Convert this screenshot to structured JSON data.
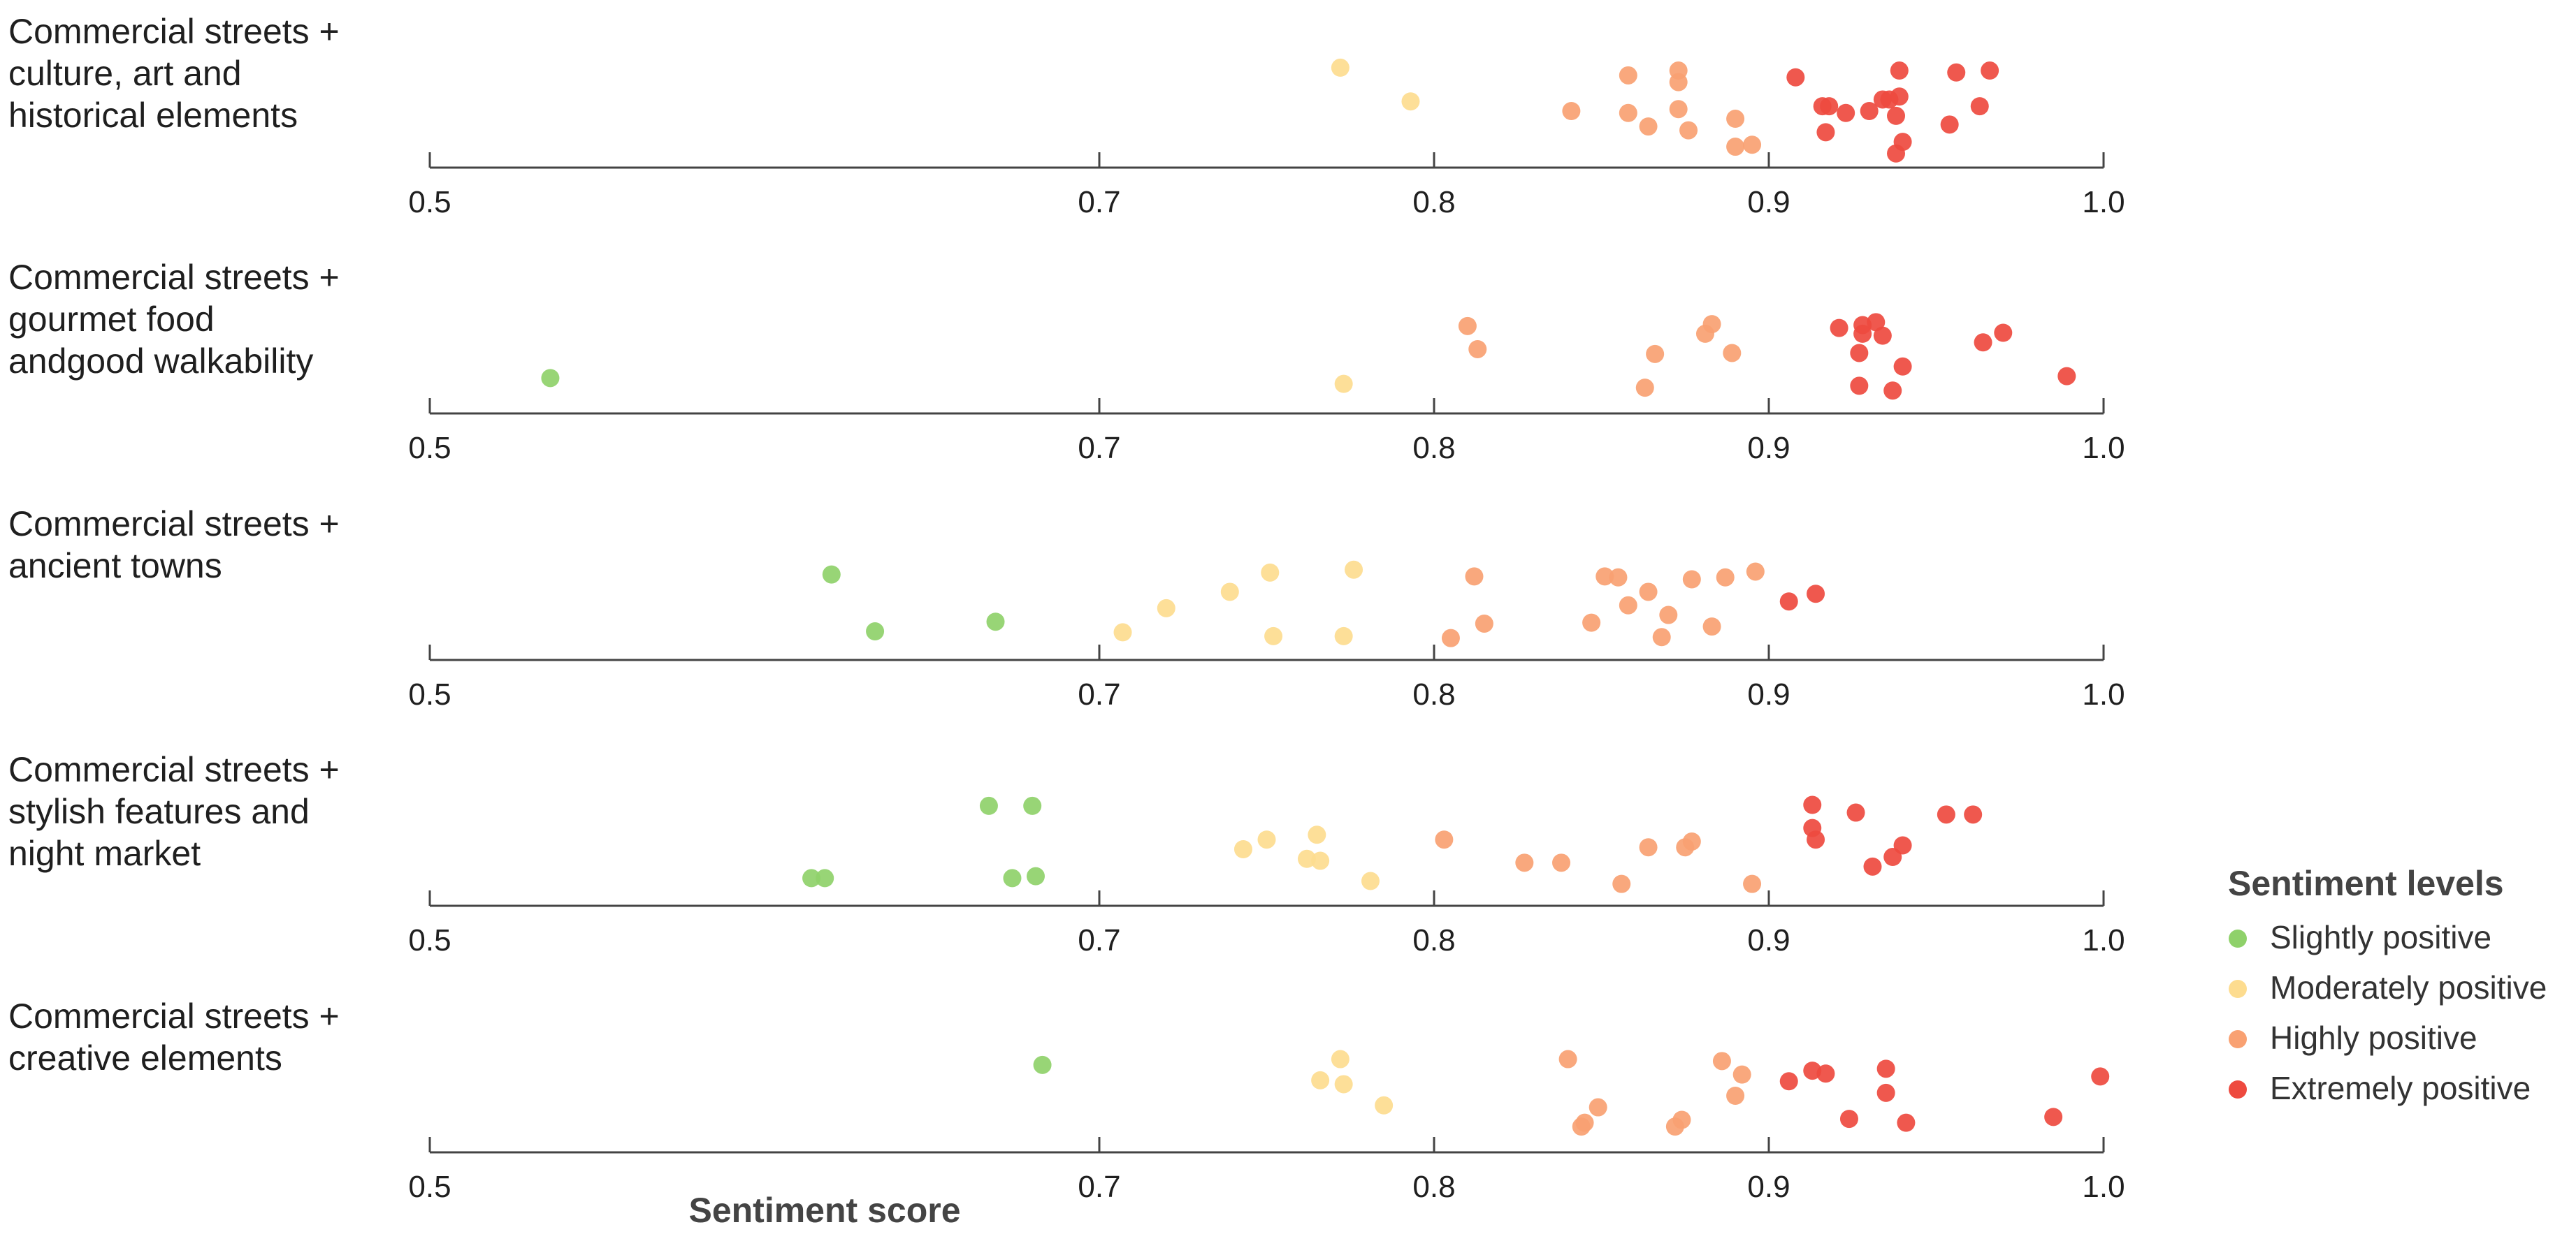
{
  "chart_data": {
    "type": "scatter",
    "xlabel": "Sentiment score",
    "ticks": [
      0.5,
      0.7,
      0.8,
      0.9,
      1.0
    ],
    "tick_labels": [
      "0.5",
      "0.7",
      "0.8",
      "0.9",
      "1.0"
    ],
    "xlim": [
      0.5,
      1.0
    ],
    "legend": {
      "title": "Sentiment levels",
      "placement": "right",
      "entries": [
        {
          "label": "Slightly positive",
          "color": "#8fd16a"
        },
        {
          "label": "Moderately positive",
          "color": "#fddc8f"
        },
        {
          "label": "Highly positive",
          "color": "#f9a172"
        },
        {
          "label": "Extremely positive",
          "color": "#ee4a3f"
        }
      ]
    },
    "panels": [
      {
        "label_lines": [
          "Commercial streets +",
          "culture, art and",
          "historical elements"
        ],
        "points": [
          {
            "x": 0.772,
            "j": 0.95,
            "c": 1
          },
          {
            "x": 0.793,
            "j": 0.6,
            "c": 1
          },
          {
            "x": 0.841,
            "j": 0.5,
            "c": 2
          },
          {
            "x": 0.858,
            "j": 0.87,
            "c": 2
          },
          {
            "x": 0.858,
            "j": 0.48,
            "c": 2
          },
          {
            "x": 0.864,
            "j": 0.34,
            "c": 2
          },
          {
            "x": 0.873,
            "j": 0.92,
            "c": 2
          },
          {
            "x": 0.873,
            "j": 0.8,
            "c": 2
          },
          {
            "x": 0.873,
            "j": 0.52,
            "c": 2
          },
          {
            "x": 0.876,
            "j": 0.3,
            "c": 2
          },
          {
            "x": 0.89,
            "j": 0.42,
            "c": 2
          },
          {
            "x": 0.89,
            "j": 0.13,
            "c": 2
          },
          {
            "x": 0.895,
            "j": 0.15,
            "c": 2
          },
          {
            "x": 0.908,
            "j": 0.85,
            "c": 3
          },
          {
            "x": 0.916,
            "j": 0.55,
            "c": 3
          },
          {
            "x": 0.917,
            "j": 0.28,
            "c": 3
          },
          {
            "x": 0.918,
            "j": 0.55,
            "c": 3
          },
          {
            "x": 0.923,
            "j": 0.48,
            "c": 3
          },
          {
            "x": 0.93,
            "j": 0.5,
            "c": 3
          },
          {
            "x": 0.934,
            "j": 0.62,
            "c": 3
          },
          {
            "x": 0.936,
            "j": 0.62,
            "c": 3
          },
          {
            "x": 0.939,
            "j": 0.92,
            "c": 3
          },
          {
            "x": 0.939,
            "j": 0.65,
            "c": 3
          },
          {
            "x": 0.938,
            "j": 0.45,
            "c": 3
          },
          {
            "x": 0.94,
            "j": 0.18,
            "c": 3
          },
          {
            "x": 0.938,
            "j": 0.06,
            "c": 3
          },
          {
            "x": 0.954,
            "j": 0.36,
            "c": 3
          },
          {
            "x": 0.956,
            "j": 0.9,
            "c": 3
          },
          {
            "x": 0.963,
            "j": 0.55,
            "c": 3
          },
          {
            "x": 0.966,
            "j": 0.92,
            "c": 3
          }
        ]
      },
      {
        "label_lines": [
          "Commercial streets +",
          "gourmet food",
          "andgood walkability"
        ],
        "points": [
          {
            "x": 0.536,
            "j": 0.28,
            "c": 0
          },
          {
            "x": 0.773,
            "j": 0.22,
            "c": 1
          },
          {
            "x": 0.81,
            "j": 0.82,
            "c": 2
          },
          {
            "x": 0.813,
            "j": 0.58,
            "c": 2
          },
          {
            "x": 0.863,
            "j": 0.18,
            "c": 2
          },
          {
            "x": 0.866,
            "j": 0.53,
            "c": 2
          },
          {
            "x": 0.881,
            "j": 0.74,
            "c": 2
          },
          {
            "x": 0.883,
            "j": 0.84,
            "c": 2
          },
          {
            "x": 0.889,
            "j": 0.54,
            "c": 2
          },
          {
            "x": 0.921,
            "j": 0.8,
            "c": 3
          },
          {
            "x": 0.927,
            "j": 0.54,
            "c": 3
          },
          {
            "x": 0.927,
            "j": 0.2,
            "c": 3
          },
          {
            "x": 0.928,
            "j": 0.83,
            "c": 3
          },
          {
            "x": 0.928,
            "j": 0.74,
            "c": 3
          },
          {
            "x": 0.932,
            "j": 0.86,
            "c": 3
          },
          {
            "x": 0.934,
            "j": 0.72,
            "c": 3
          },
          {
            "x": 0.937,
            "j": 0.15,
            "c": 3
          },
          {
            "x": 0.94,
            "j": 0.4,
            "c": 3
          },
          {
            "x": 0.964,
            "j": 0.65,
            "c": 3
          },
          {
            "x": 0.97,
            "j": 0.75,
            "c": 3
          },
          {
            "x": 0.989,
            "j": 0.3,
            "c": 3
          }
        ]
      },
      {
        "label_lines": [
          "Commercial streets +",
          "ancient towns"
        ],
        "points": [
          {
            "x": 0.62,
            "j": 0.8,
            "c": 0
          },
          {
            "x": 0.633,
            "j": 0.21,
            "c": 0
          },
          {
            "x": 0.669,
            "j": 0.31,
            "c": 0
          },
          {
            "x": 0.707,
            "j": 0.2,
            "c": 1
          },
          {
            "x": 0.72,
            "j": 0.45,
            "c": 1
          },
          {
            "x": 0.739,
            "j": 0.62,
            "c": 1
          },
          {
            "x": 0.751,
            "j": 0.82,
            "c": 1
          },
          {
            "x": 0.752,
            "j": 0.16,
            "c": 1
          },
          {
            "x": 0.773,
            "j": 0.16,
            "c": 1
          },
          {
            "x": 0.776,
            "j": 0.85,
            "c": 1
          },
          {
            "x": 0.805,
            "j": 0.14,
            "c": 2
          },
          {
            "x": 0.812,
            "j": 0.78,
            "c": 2
          },
          {
            "x": 0.815,
            "j": 0.29,
            "c": 2
          },
          {
            "x": 0.847,
            "j": 0.3,
            "c": 2
          },
          {
            "x": 0.851,
            "j": 0.78,
            "c": 2
          },
          {
            "x": 0.855,
            "j": 0.77,
            "c": 2
          },
          {
            "x": 0.858,
            "j": 0.48,
            "c": 2
          },
          {
            "x": 0.864,
            "j": 0.62,
            "c": 2
          },
          {
            "x": 0.868,
            "j": 0.15,
            "c": 2
          },
          {
            "x": 0.87,
            "j": 0.38,
            "c": 2
          },
          {
            "x": 0.877,
            "j": 0.75,
            "c": 2
          },
          {
            "x": 0.883,
            "j": 0.26,
            "c": 2
          },
          {
            "x": 0.887,
            "j": 0.77,
            "c": 2
          },
          {
            "x": 0.896,
            "j": 0.83,
            "c": 2
          },
          {
            "x": 0.906,
            "j": 0.52,
            "c": 3
          },
          {
            "x": 0.914,
            "j": 0.6,
            "c": 3
          }
        ]
      },
      {
        "label_lines": [
          "Commercial streets +",
          "stylish features and",
          "night market"
        ],
        "points": [
          {
            "x": 0.614,
            "j": 0.2,
            "c": 0
          },
          {
            "x": 0.618,
            "j": 0.2,
            "c": 0
          },
          {
            "x": 0.667,
            "j": 0.95,
            "c": 0
          },
          {
            "x": 0.674,
            "j": 0.2,
            "c": 0
          },
          {
            "x": 0.68,
            "j": 0.95,
            "c": 0
          },
          {
            "x": 0.681,
            "j": 0.22,
            "c": 0
          },
          {
            "x": 0.743,
            "j": 0.5,
            "c": 1
          },
          {
            "x": 0.75,
            "j": 0.6,
            "c": 1
          },
          {
            "x": 0.762,
            "j": 0.4,
            "c": 1
          },
          {
            "x": 0.765,
            "j": 0.65,
            "c": 1
          },
          {
            "x": 0.766,
            "j": 0.38,
            "c": 1
          },
          {
            "x": 0.781,
            "j": 0.17,
            "c": 1
          },
          {
            "x": 0.803,
            "j": 0.6,
            "c": 2
          },
          {
            "x": 0.827,
            "j": 0.36,
            "c": 2
          },
          {
            "x": 0.838,
            "j": 0.36,
            "c": 2
          },
          {
            "x": 0.856,
            "j": 0.14,
            "c": 2
          },
          {
            "x": 0.864,
            "j": 0.52,
            "c": 2
          },
          {
            "x": 0.875,
            "j": 0.52,
            "c": 2
          },
          {
            "x": 0.877,
            "j": 0.58,
            "c": 2
          },
          {
            "x": 0.895,
            "j": 0.14,
            "c": 2
          },
          {
            "x": 0.913,
            "j": 0.96,
            "c": 3
          },
          {
            "x": 0.913,
            "j": 0.72,
            "c": 3
          },
          {
            "x": 0.914,
            "j": 0.6,
            "c": 3
          },
          {
            "x": 0.926,
            "j": 0.88,
            "c": 3
          },
          {
            "x": 0.931,
            "j": 0.32,
            "c": 3
          },
          {
            "x": 0.937,
            "j": 0.42,
            "c": 3
          },
          {
            "x": 0.94,
            "j": 0.54,
            "c": 3
          },
          {
            "x": 0.953,
            "j": 0.86,
            "c": 3
          },
          {
            "x": 0.961,
            "j": 0.86,
            "c": 3
          }
        ]
      },
      {
        "label_lines": [
          "Commercial streets +",
          "creative elements"
        ],
        "points": [
          {
            "x": 0.683,
            "j": 0.82,
            "c": 0
          },
          {
            "x": 0.766,
            "j": 0.66,
            "c": 1
          },
          {
            "x": 0.772,
            "j": 0.88,
            "c": 1
          },
          {
            "x": 0.773,
            "j": 0.62,
            "c": 1
          },
          {
            "x": 0.785,
            "j": 0.4,
            "c": 1
          },
          {
            "x": 0.84,
            "j": 0.88,
            "c": 2
          },
          {
            "x": 0.844,
            "j": 0.18,
            "c": 2
          },
          {
            "x": 0.845,
            "j": 0.22,
            "c": 2
          },
          {
            "x": 0.849,
            "j": 0.38,
            "c": 2
          },
          {
            "x": 0.872,
            "j": 0.18,
            "c": 2
          },
          {
            "x": 0.874,
            "j": 0.25,
            "c": 2
          },
          {
            "x": 0.886,
            "j": 0.86,
            "c": 2
          },
          {
            "x": 0.89,
            "j": 0.5,
            "c": 2
          },
          {
            "x": 0.892,
            "j": 0.72,
            "c": 2
          },
          {
            "x": 0.906,
            "j": 0.65,
            "c": 3
          },
          {
            "x": 0.913,
            "j": 0.76,
            "c": 3
          },
          {
            "x": 0.917,
            "j": 0.73,
            "c": 3
          },
          {
            "x": 0.924,
            "j": 0.26,
            "c": 3
          },
          {
            "x": 0.935,
            "j": 0.78,
            "c": 3
          },
          {
            "x": 0.935,
            "j": 0.53,
            "c": 3
          },
          {
            "x": 0.941,
            "j": 0.22,
            "c": 3
          },
          {
            "x": 0.985,
            "j": 0.28,
            "c": 3
          },
          {
            "x": 0.999,
            "j": 0.7,
            "c": 3
          }
        ]
      }
    ]
  }
}
